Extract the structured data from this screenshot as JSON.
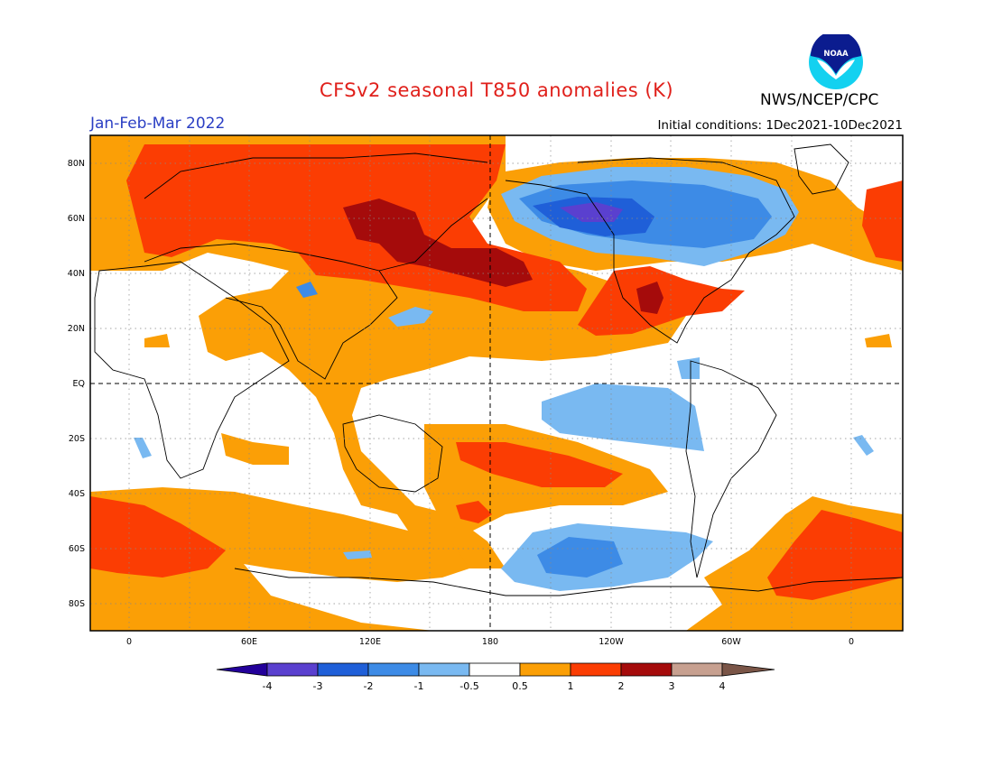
{
  "title": "CFSv2 seasonal T850 anomalies (K)",
  "agency": "NWS/NCEP/CPC",
  "logo": {
    "text": "NOAA",
    "icon": "noaa-logo-icon"
  },
  "period": "Jan-Feb-Mar 2022",
  "initial_conditions": "Initial conditions: 1Dec2021-10Dec2021",
  "map": {
    "projection": "equirectangular",
    "lon_range": [
      -30,
      390
    ],
    "lat_range": [
      -90,
      90
    ],
    "lat_labels": [
      "80N",
      "60N",
      "40N",
      "20N",
      "EQ",
      "20S",
      "40S",
      "60S",
      "80S"
    ],
    "lon_labels": [
      "0",
      "60E",
      "120E",
      "180",
      "120W",
      "60W",
      "0"
    ],
    "grid": "dotted",
    "reference_lines": [
      "EQ",
      "180"
    ]
  },
  "colorbar": {
    "labels": [
      "-4",
      "-3",
      "-2",
      "-1",
      "-0.5",
      "0.5",
      "1",
      "2",
      "3",
      "4"
    ],
    "colors": [
      "#23009a",
      "#5a40cf",
      "#1f5fd8",
      "#3d8be6",
      "#79b9f1",
      "#ffffff",
      "#fb9f06",
      "#fb3d03",
      "#a50b0b",
      "#c7a090",
      "#7a5547"
    ],
    "units": "K"
  }
}
